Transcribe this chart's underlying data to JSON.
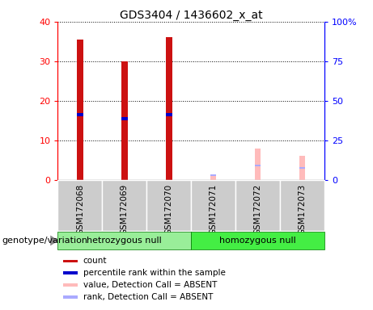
{
  "title": "GDS3404 / 1436602_x_at",
  "samples": [
    "GSM172068",
    "GSM172069",
    "GSM172070",
    "GSM172071",
    "GSM172072",
    "GSM172073"
  ],
  "count_values": [
    35.5,
    30.0,
    36.0,
    0.0,
    0.0,
    0.0
  ],
  "rank_values": [
    16.5,
    15.5,
    16.5,
    0.0,
    0.0,
    0.0
  ],
  "absent_value_values": [
    0.0,
    0.0,
    0.0,
    1.0,
    8.0,
    6.0
  ],
  "absent_rank_values": [
    0.0,
    0.0,
    0.0,
    2.8,
    9.0,
    7.5
  ],
  "detection_absent": [
    false,
    false,
    false,
    true,
    true,
    true
  ],
  "groups": [
    {
      "label": "hetrozygous null",
      "start": 0,
      "end": 3,
      "color": "#99ee99"
    },
    {
      "label": "homozygous null",
      "start": 3,
      "end": 6,
      "color": "#44ee44"
    }
  ],
  "ylim_left": [
    0,
    40
  ],
  "ylim_right": [
    0,
    100
  ],
  "yticks_left": [
    0,
    10,
    20,
    30,
    40
  ],
  "yticks_right": [
    0,
    25,
    50,
    75,
    100
  ],
  "yticklabels_right": [
    "0",
    "25",
    "50",
    "75",
    "100%"
  ],
  "count_color": "#cc1111",
  "rank_color": "#0000cc",
  "absent_value_color": "#ffbbbb",
  "absent_rank_color": "#aaaaff",
  "label_area_bg": "#cccccc",
  "genotype_label": "genotype/variation"
}
